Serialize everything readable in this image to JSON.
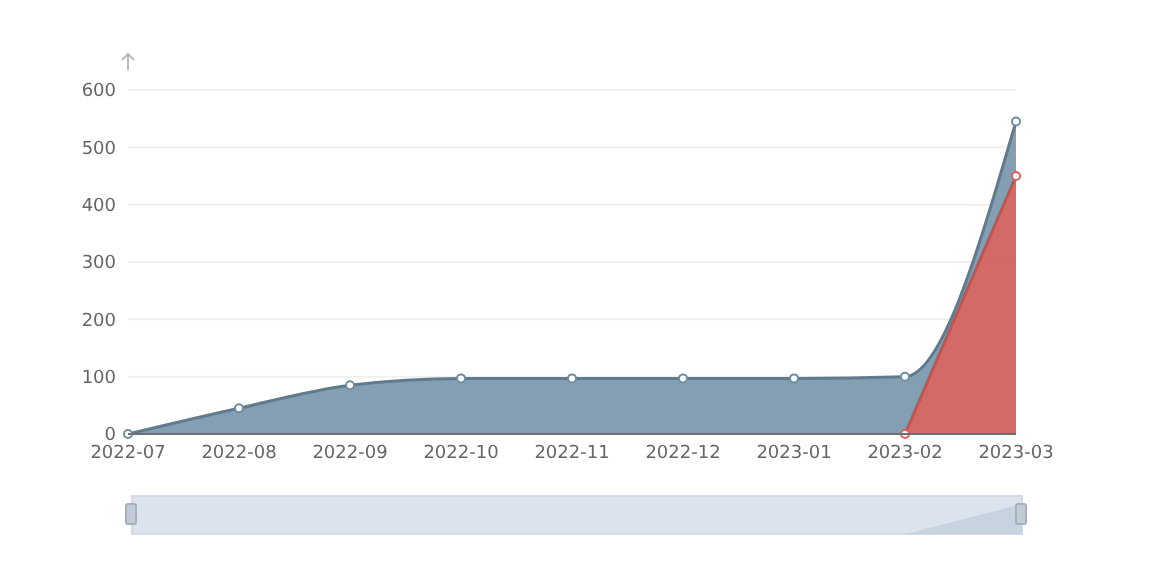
{
  "chart_data": {
    "type": "area",
    "categories": [
      "2022-07",
      "2022-08",
      "2022-09",
      "2022-10",
      "2022-11",
      "2022-12",
      "2023-01",
      "2023-02",
      "2023-03"
    ],
    "series": [
      {
        "color": "#6f8ea3",
        "values": [
          0,
          45,
          85,
          97,
          97,
          97,
          97,
          100,
          545
        ]
      },
      {
        "color": "#e0605a",
        "values": [
          null,
          null,
          null,
          null,
          null,
          null,
          null,
          0,
          450
        ]
      }
    ],
    "ylim": [
      0,
      600
    ],
    "yticks": [
      0,
      100,
      200,
      300,
      400,
      500,
      600
    ],
    "grid": "y",
    "marker": "circle"
  }
}
